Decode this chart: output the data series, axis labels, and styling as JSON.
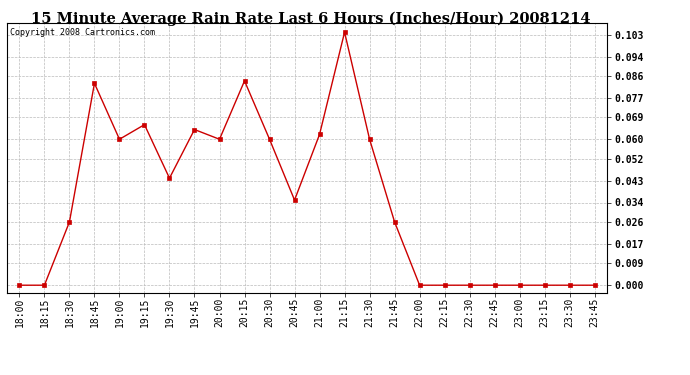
{
  "title": "15 Minute Average Rain Rate Last 6 Hours (Inches/Hour) 20081214",
  "copyright": "Copyright 2008 Cartronics.com",
  "x_labels": [
    "18:00",
    "18:15",
    "18:30",
    "18:45",
    "19:00",
    "19:15",
    "19:30",
    "19:45",
    "20:00",
    "20:15",
    "20:30",
    "20:45",
    "21:00",
    "21:15",
    "21:30",
    "21:45",
    "22:00",
    "22:15",
    "22:30",
    "22:45",
    "23:00",
    "23:15",
    "23:30",
    "23:45"
  ],
  "y_values": [
    0.0,
    0.0,
    0.026,
    0.083,
    0.06,
    0.066,
    0.044,
    0.064,
    0.06,
    0.084,
    0.06,
    0.035,
    0.062,
    0.104,
    0.06,
    0.026,
    0.0,
    0.0,
    0.0,
    0.0,
    0.0,
    0.0,
    0.0,
    0.0
  ],
  "y_ticks": [
    0.0,
    0.009,
    0.017,
    0.026,
    0.034,
    0.043,
    0.052,
    0.06,
    0.069,
    0.077,
    0.086,
    0.094,
    0.103
  ],
  "line_color": "#cc0000",
  "marker": "s",
  "marker_size": 2.5,
  "background_color": "#ffffff",
  "plot_bg_color": "#ffffff",
  "grid_color": "#bbbbbb",
  "title_fontsize": 10.5,
  "tick_fontsize": 7,
  "copyright_fontsize": 6,
  "ylim": [
    -0.003,
    0.108
  ],
  "ylabel_right": true
}
